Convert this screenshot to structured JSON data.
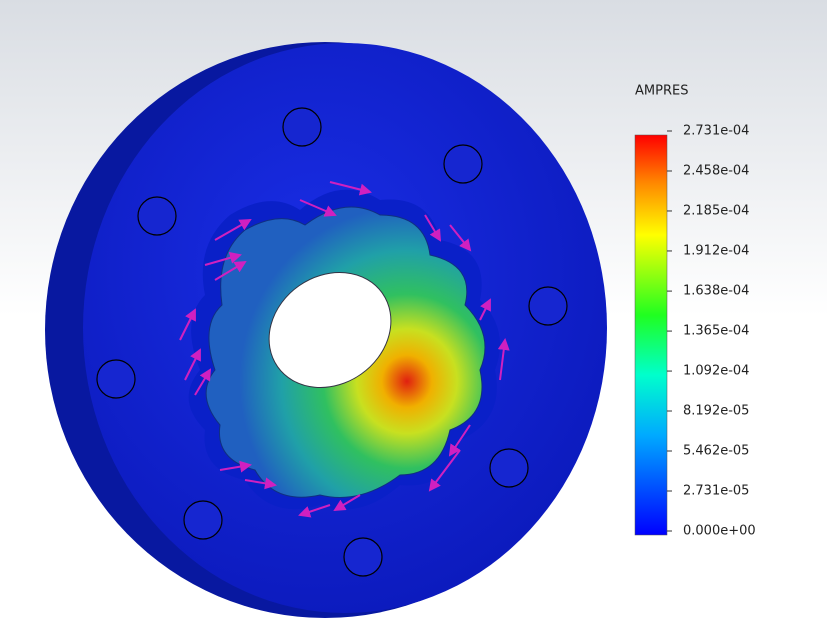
{
  "legend": {
    "title": "AMPRES",
    "range": [
      0,
      0.0002731
    ],
    "ticks": [
      {
        "value": 0.0002731,
        "label": "2.731e-04"
      },
      {
        "value": 0.0002458,
        "label": "2.458e-04"
      },
      {
        "value": 0.0002185,
        "label": "2.185e-04"
      },
      {
        "value": 0.0001912,
        "label": "1.912e-04"
      },
      {
        "value": 0.0001638,
        "label": "1.638e-04"
      },
      {
        "value": 0.0001365,
        "label": "1.365e-04"
      },
      {
        "value": 0.0001092,
        "label": "1.092e-04"
      },
      {
        "value": 8.192e-05,
        "label": "8.192e-05"
      },
      {
        "value": 5.462e-05,
        "label": "5.462e-05"
      },
      {
        "value": 2.731e-05,
        "label": "2.731e-05"
      },
      {
        "value": 0,
        "label": "0.000e+00"
      }
    ]
  }
}
